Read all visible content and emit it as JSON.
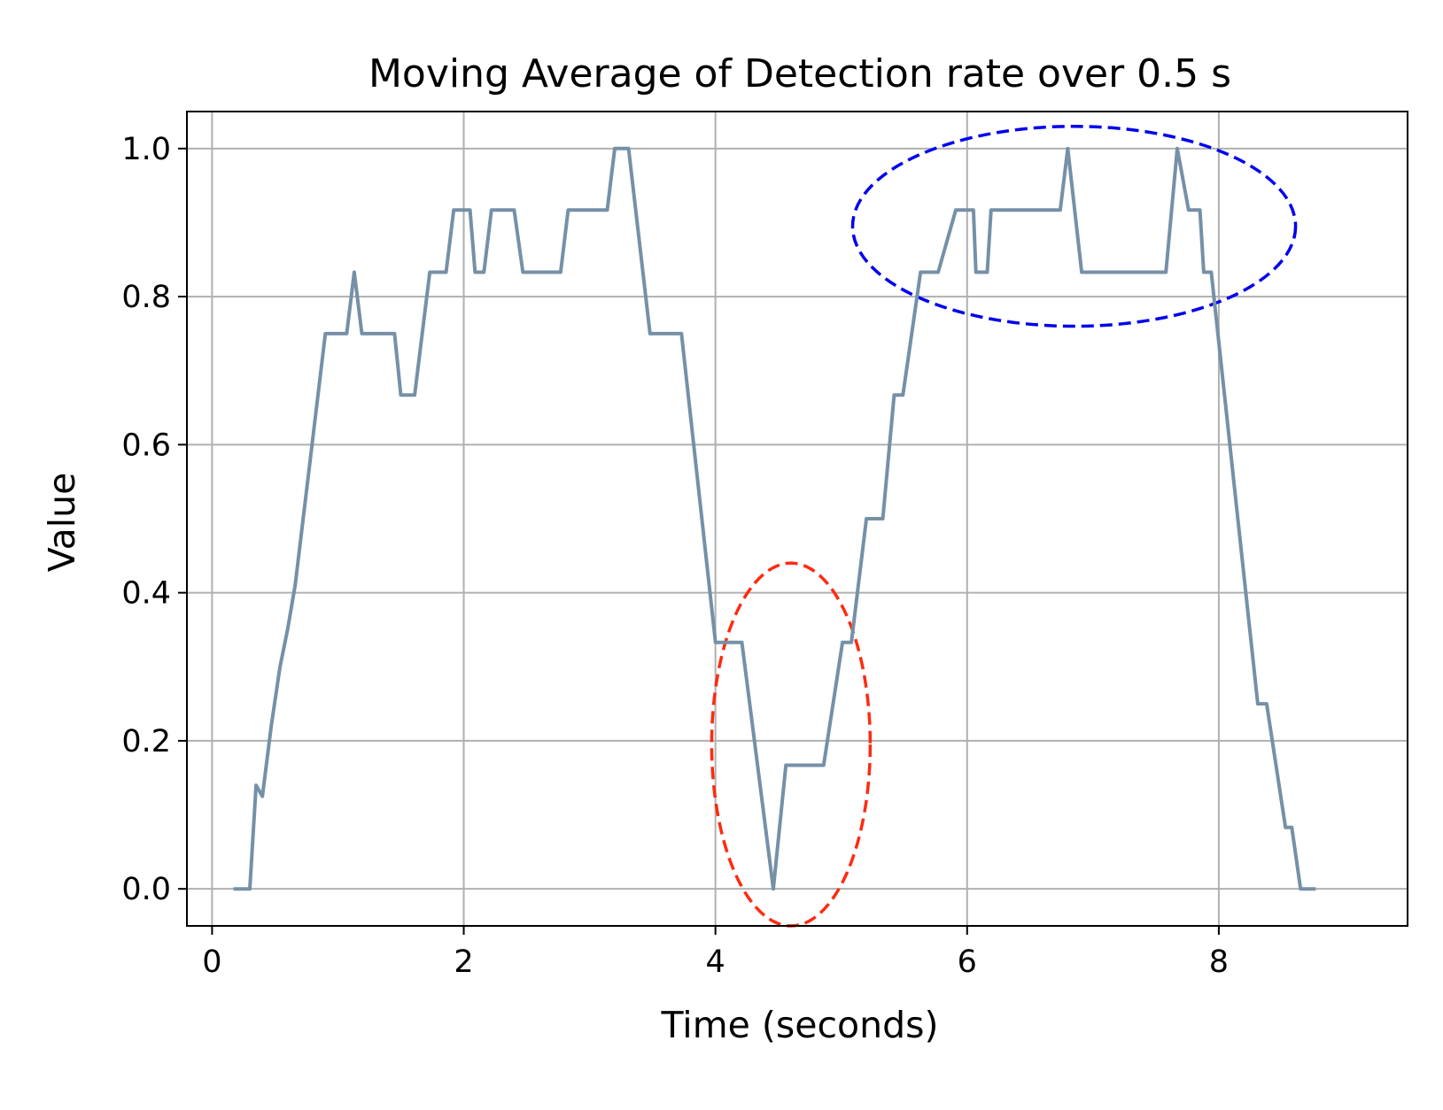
{
  "chart_data": {
    "type": "line",
    "title": "Moving Average of Detection rate over 0.5 s",
    "xlabel": "Time (seconds)",
    "ylabel": "Value",
    "xlim": [
      -0.2,
      9.5
    ],
    "ylim": [
      -0.05,
      1.05
    ],
    "xticks": [
      0,
      2,
      4,
      6,
      8
    ],
    "xtick_labels": [
      "0",
      "2",
      "4",
      "6",
      "8"
    ],
    "yticks": [
      0.0,
      0.2,
      0.4,
      0.6,
      0.8,
      1.0
    ],
    "ytick_labels": [
      "0.0",
      "0.2",
      "0.4",
      "0.6",
      "0.8",
      "1.0"
    ],
    "grid": true,
    "legend": "none",
    "line_color": "#7590a7",
    "series": [
      {
        "x": [
          0.17,
          0.3,
          0.35,
          0.4,
          0.47,
          0.54,
          0.6,
          0.66,
          0.9,
          1.07,
          1.13,
          1.19,
          1.45,
          1.5,
          1.61,
          1.73,
          1.86,
          1.92,
          2.05,
          2.09,
          2.16,
          2.22,
          2.4,
          2.47,
          2.77,
          2.83,
          3.14,
          3.2,
          3.31,
          3.48,
          3.52,
          3.73,
          4.0,
          4.06,
          4.21,
          4.46,
          4.56,
          4.86,
          5.01,
          5.08,
          5.2,
          5.33,
          5.42,
          5.49,
          5.63,
          5.77,
          5.91,
          6.05,
          6.07,
          6.16,
          6.19,
          6.52,
          6.74,
          6.8,
          6.91,
          7.58,
          7.67,
          7.76,
          7.85,
          7.88,
          7.94,
          8.31,
          8.38,
          8.53,
          8.58,
          8.65,
          8.77
        ],
        "y": [
          0,
          0,
          0.14,
          0.125,
          0.22,
          0.3,
          0.35,
          0.41,
          0.75,
          0.75,
          0.833,
          0.75,
          0.75,
          0.667,
          0.667,
          0.833,
          0.833,
          0.917,
          0.917,
          0.833,
          0.833,
          0.917,
          0.917,
          0.833,
          0.833,
          0.917,
          0.917,
          1.0,
          1.0,
          0.75,
          0.75,
          0.75,
          0.333,
          0.333,
          0.333,
          0.0,
          0.167,
          0.167,
          0.333,
          0.333,
          0.5,
          0.5,
          0.667,
          0.667,
          0.833,
          0.833,
          0.917,
          0.917,
          0.833,
          0.833,
          0.917,
          0.917,
          0.917,
          1.0,
          0.833,
          0.833,
          1.0,
          0.917,
          0.917,
          0.833,
          0.833,
          0.25,
          0.25,
          0.083,
          0.083,
          0.0,
          0.0
        ]
      }
    ],
    "annotations": [
      {
        "type": "ellipse",
        "center": [
          4.6,
          0.195
        ],
        "radii": [
          0.63,
          0.245
        ],
        "color": "#ff2a0f",
        "dashed": true
      },
      {
        "type": "ellipse",
        "center": [
          6.85,
          0.895
        ],
        "radii": [
          1.76,
          0.135
        ],
        "color": "#0000ee",
        "dashed": true
      }
    ]
  }
}
